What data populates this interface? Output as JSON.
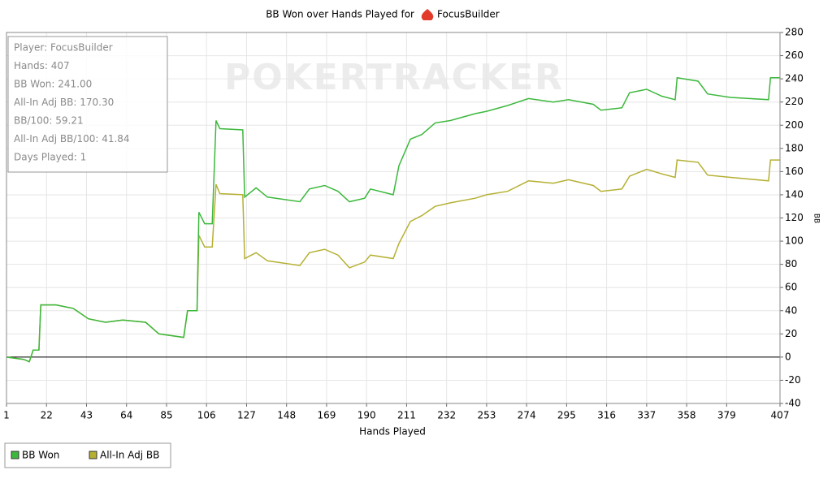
{
  "chart_data": {
    "type": "line",
    "title": "BB Won over Hands Played for",
    "title_player": "FocusBuilder",
    "watermark": "POKERTRACKER",
    "x_label": "Hands Played",
    "y_label": "BB",
    "info": [
      "Player: FocusBuilder",
      "Hands: 407",
      "BB Won: 241.00",
      "All-In Adj BB: 170.30",
      "BB/100: 59.21",
      "All-In Adj BB/100: 41.84",
      "Days Played: 1"
    ],
    "x": [
      1,
      10,
      13,
      15,
      18,
      19,
      27,
      36,
      44,
      53,
      62,
      74,
      81,
      94,
      96,
      101,
      102,
      105,
      109,
      111,
      113,
      125,
      126,
      132,
      138,
      155,
      160,
      168,
      175,
      181,
      189,
      192,
      204,
      207,
      213,
      219,
      226,
      234,
      247,
      253,
      264,
      275,
      288,
      296,
      309,
      313,
      324,
      328,
      337,
      345,
      352,
      353,
      364,
      369,
      381,
      401,
      402,
      407
    ],
    "series": [
      {
        "name": "BB Won",
        "color": "#3cb83c",
        "values": [
          0,
          -2,
          -4,
          6,
          6,
          45,
          45,
          42,
          33,
          30,
          32,
          30,
          20,
          17,
          40,
          40,
          125,
          115,
          115,
          204,
          197,
          196,
          138,
          146,
          138,
          134,
          145,
          148,
          143,
          134,
          137,
          145,
          140,
          165,
          188,
          192,
          202,
          204,
          210,
          212,
          217,
          223,
          220,
          222,
          218,
          213,
          215,
          228,
          231,
          225,
          222,
          241,
          238,
          227,
          224,
          222,
          241,
          241
        ]
      },
      {
        "name": "All-In Adj BB",
        "color": "#b5b032",
        "values": [
          0,
          -2,
          -4,
          6,
          6,
          45,
          45,
          42,
          33,
          30,
          32,
          30,
          20,
          17,
          40,
          40,
          105,
          95,
          95,
          149,
          141,
          140,
          85,
          90,
          83,
          79,
          90,
          93,
          88,
          77,
          82,
          88,
          85,
          98,
          117,
          122,
          130,
          133,
          137,
          140,
          143,
          152,
          150,
          153,
          148,
          143,
          145,
          156,
          162,
          158,
          155,
          170,
          168,
          157,
          155,
          152,
          170,
          170
        ]
      }
    ],
    "xlim": [
      1,
      407
    ],
    "xticks": [
      1,
      22,
      43,
      64,
      85,
      106,
      127,
      148,
      169,
      190,
      211,
      232,
      253,
      274,
      295,
      316,
      337,
      358,
      379,
      407
    ],
    "ylim": [
      -40,
      280
    ],
    "yticks": [
      -40,
      -20,
      0,
      20,
      40,
      60,
      80,
      100,
      120,
      140,
      160,
      180,
      200,
      220,
      240,
      260,
      280
    ],
    "grid": true
  }
}
